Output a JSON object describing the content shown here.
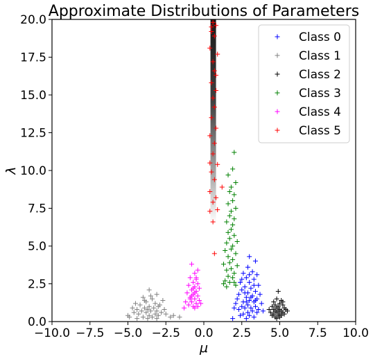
{
  "chart_data": {
    "type": "scatter",
    "title": "Approximate Distributions of Parameters",
    "xlabel": "μ",
    "ylabel": "λ",
    "xlim": [
      -10.0,
      10.0
    ],
    "ylim": [
      0.0,
      20.0
    ],
    "xticks": [
      "−10.0",
      "−7.5",
      "−5.0",
      "−2.5",
      "0.0",
      "2.5",
      "5.0",
      "7.5",
      "10.0"
    ],
    "yticks": [
      "0.0",
      "2.5",
      "5.0",
      "7.5",
      "10.0",
      "12.5",
      "15.0",
      "17.5",
      "20.0"
    ],
    "xtick_values": [
      -10,
      -7.5,
      -5,
      -2.5,
      0,
      2.5,
      5,
      7.5,
      10
    ],
    "ytick_values": [
      0,
      2.5,
      5,
      7.5,
      10,
      12.5,
      15,
      17.5,
      20
    ],
    "grid": false,
    "legend_position": "top-right",
    "marker": "+",
    "density_band": {
      "x": 0.62,
      "y_from": 6.5,
      "y_to": 20.0,
      "color": "#000000"
    },
    "series": [
      {
        "name": "Class 0",
        "color": "#0000ff",
        "points": [
          [
            3.0,
            4.3
          ],
          [
            3.4,
            4.0
          ],
          [
            2.9,
            3.6
          ],
          [
            3.2,
            3.3
          ],
          [
            2.6,
            3.2
          ],
          [
            3.5,
            3.1
          ],
          [
            2.8,
            2.9
          ],
          [
            3.3,
            2.8
          ],
          [
            2.4,
            2.6
          ],
          [
            3.0,
            2.6
          ],
          [
            3.6,
            2.4
          ],
          [
            2.7,
            2.3
          ],
          [
            3.1,
            2.2
          ],
          [
            2.5,
            2.1
          ],
          [
            3.4,
            2.0
          ],
          [
            2.9,
            1.9
          ],
          [
            3.7,
            1.8
          ],
          [
            2.3,
            1.8
          ],
          [
            3.2,
            1.7
          ],
          [
            2.8,
            1.6
          ],
          [
            3.5,
            1.5
          ],
          [
            2.2,
            1.5
          ],
          [
            3.0,
            1.4
          ],
          [
            2.6,
            1.3
          ],
          [
            3.3,
            1.3
          ],
          [
            3.8,
            1.2
          ],
          [
            2.1,
            1.2
          ],
          [
            2.9,
            1.1
          ],
          [
            3.4,
            1.0
          ],
          [
            2.5,
            1.0
          ],
          [
            3.1,
            0.9
          ],
          [
            2.7,
            0.9
          ],
          [
            3.6,
            0.8
          ],
          [
            2.3,
            0.8
          ],
          [
            3.2,
            0.7
          ],
          [
            2.9,
            0.6
          ],
          [
            3.5,
            0.6
          ],
          [
            2.6,
            0.5
          ],
          [
            3.0,
            0.4
          ],
          [
            2.4,
            0.4
          ],
          [
            3.3,
            0.3
          ],
          [
            2.8,
            0.2
          ],
          [
            1.9,
            0.2
          ],
          [
            3.9,
            0.7
          ],
          [
            2.0,
            0.9
          ],
          [
            3.1,
            1.6
          ],
          [
            2.7,
            1.9
          ],
          [
            3.3,
            2.4
          ],
          [
            2.5,
            2.8
          ],
          [
            3.0,
            3.1
          ],
          [
            3.4,
            1.4
          ],
          [
            2.8,
            1.3
          ]
        ]
      },
      {
        "name": "Class 1",
        "color": "#808080",
        "points": [
          [
            -3.6,
            2.1
          ],
          [
            -3.1,
            1.8
          ],
          [
            -4.0,
            1.6
          ],
          [
            -3.4,
            1.5
          ],
          [
            -2.7,
            1.4
          ],
          [
            -3.8,
            1.3
          ],
          [
            -4.5,
            1.2
          ],
          [
            -3.2,
            1.2
          ],
          [
            -2.9,
            1.1
          ],
          [
            -4.2,
            1.1
          ],
          [
            -3.6,
            1.0
          ],
          [
            -3.0,
            1.0
          ],
          [
            -4.7,
            0.9
          ],
          [
            -3.9,
            0.9
          ],
          [
            -3.3,
            0.9
          ],
          [
            -2.6,
            0.8
          ],
          [
            -4.4,
            0.8
          ],
          [
            -3.7,
            0.8
          ],
          [
            -3.1,
            0.7
          ],
          [
            -4.1,
            0.7
          ],
          [
            -3.5,
            0.7
          ],
          [
            -2.8,
            0.6
          ],
          [
            -4.6,
            0.6
          ],
          [
            -3.8,
            0.6
          ],
          [
            -3.2,
            0.5
          ],
          [
            -2.5,
            0.5
          ],
          [
            -4.3,
            0.5
          ],
          [
            -3.6,
            0.4
          ],
          [
            -3.0,
            0.4
          ],
          [
            -4.9,
            0.3
          ],
          [
            -4.0,
            0.3
          ],
          [
            -3.4,
            0.3
          ],
          [
            -2.2,
            0.3
          ],
          [
            -3.7,
            0.2
          ],
          [
            -4.4,
            0.2
          ],
          [
            -3.1,
            0.2
          ],
          [
            -2.0,
            0.4
          ],
          [
            -1.6,
            0.3
          ],
          [
            -5.0,
            0.4
          ],
          [
            -3.9,
            1.4
          ],
          [
            -3.5,
            1.7
          ]
        ]
      },
      {
        "name": "Class 2",
        "color": "#000000",
        "points": [
          [
            4.9,
            2.0
          ],
          [
            4.8,
            1.5
          ],
          [
            5.1,
            1.4
          ],
          [
            4.6,
            1.3
          ],
          [
            5.0,
            1.2
          ],
          [
            4.7,
            1.1
          ],
          [
            5.2,
            1.1
          ],
          [
            4.9,
            1.0
          ],
          [
            4.5,
            1.0
          ],
          [
            5.3,
            0.9
          ],
          [
            4.8,
            0.9
          ],
          [
            5.0,
            0.8
          ],
          [
            4.6,
            0.8
          ],
          [
            5.4,
            0.8
          ],
          [
            4.9,
            0.7
          ],
          [
            4.7,
            0.7
          ],
          [
            5.1,
            0.7
          ],
          [
            4.4,
            0.6
          ],
          [
            5.2,
            0.6
          ],
          [
            4.8,
            0.6
          ],
          [
            5.0,
            0.5
          ],
          [
            4.6,
            0.5
          ],
          [
            5.3,
            0.5
          ],
          [
            4.9,
            0.4
          ],
          [
            4.5,
            0.4
          ],
          [
            5.1,
            0.4
          ],
          [
            4.7,
            0.3
          ],
          [
            5.0,
            0.3
          ],
          [
            4.8,
            0.2
          ],
          [
            5.5,
            0.7
          ],
          [
            4.3,
            0.8
          ],
          [
            5.2,
            1.3
          ]
        ]
      },
      {
        "name": "Class 3",
        "color": "#008000",
        "points": [
          [
            2.0,
            11.2
          ],
          [
            1.9,
            10.1
          ],
          [
            1.6,
            9.7
          ],
          [
            2.1,
            9.2
          ],
          [
            1.8,
            8.9
          ],
          [
            1.7,
            8.6
          ],
          [
            2.0,
            8.4
          ],
          [
            1.9,
            8.0
          ],
          [
            1.6,
            7.8
          ],
          [
            2.1,
            7.5
          ],
          [
            1.8,
            7.3
          ],
          [
            1.7,
            7.0
          ],
          [
            2.0,
            6.8
          ],
          [
            1.5,
            6.6
          ],
          [
            1.9,
            6.4
          ],
          [
            1.8,
            6.1
          ],
          [
            1.6,
            5.9
          ],
          [
            2.0,
            5.7
          ],
          [
            1.7,
            5.5
          ],
          [
            2.2,
            5.3
          ],
          [
            1.5,
            5.2
          ],
          [
            1.9,
            5.0
          ],
          [
            1.8,
            4.8
          ],
          [
            1.4,
            4.7
          ],
          [
            2.1,
            4.5
          ],
          [
            1.6,
            4.3
          ],
          [
            1.9,
            4.1
          ],
          [
            1.7,
            3.9
          ],
          [
            1.3,
            3.8
          ],
          [
            2.2,
            3.7
          ],
          [
            1.8,
            3.5
          ],
          [
            1.5,
            3.4
          ],
          [
            2.0,
            3.2
          ],
          [
            1.6,
            3.0
          ],
          [
            1.9,
            2.9
          ],
          [
            1.4,
            2.7
          ],
          [
            1.7,
            2.6
          ],
          [
            2.1,
            2.4
          ],
          [
            1.5,
            2.3
          ],
          [
            2.0,
            2.6
          ],
          [
            1.3,
            2.5
          ]
        ]
      },
      {
        "name": "Class 4",
        "color": "#ff00ff",
        "points": [
          [
            -0.8,
            3.8
          ],
          [
            -0.4,
            3.4
          ],
          [
            -0.6,
            3.2
          ],
          [
            -0.9,
            2.9
          ],
          [
            -0.5,
            2.8
          ],
          [
            -0.7,
            2.6
          ],
          [
            -0.4,
            2.5
          ],
          [
            -1.0,
            2.4
          ],
          [
            -0.6,
            2.3
          ],
          [
            -0.3,
            2.2
          ],
          [
            -0.8,
            2.1
          ],
          [
            -0.5,
            2.0
          ],
          [
            -1.1,
            1.9
          ],
          [
            -0.7,
            1.8
          ],
          [
            -0.4,
            1.7
          ],
          [
            -0.9,
            1.6
          ],
          [
            -0.6,
            1.5
          ],
          [
            -0.3,
            1.4
          ],
          [
            -1.2,
            1.3
          ],
          [
            -0.8,
            1.3
          ],
          [
            -0.5,
            1.2
          ],
          [
            -1.0,
            1.1
          ],
          [
            -0.7,
            1.0
          ],
          [
            -0.4,
            1.0
          ],
          [
            -1.3,
            0.9
          ],
          [
            -0.6,
            0.9
          ],
          [
            -0.9,
            1.5
          ],
          [
            -0.5,
            2.9
          ],
          [
            -0.7,
            2.2
          ],
          [
            -0.6,
            1.9
          ],
          [
            -0.2,
            1.2
          ],
          [
            -0.8,
            1.7
          ]
        ]
      },
      {
        "name": "Class 5",
        "color": "#ff0000",
        "points": [
          [
            0.6,
            19.8
          ],
          [
            0.8,
            19.6
          ],
          [
            0.5,
            19.2
          ],
          [
            0.7,
            18.9
          ],
          [
            0.4,
            18.1
          ],
          [
            0.9,
            17.7
          ],
          [
            0.6,
            17.2
          ],
          [
            0.7,
            16.6
          ],
          [
            0.5,
            15.8
          ],
          [
            0.8,
            15.3
          ],
          [
            0.6,
            14.8
          ],
          [
            0.7,
            14.2
          ],
          [
            0.5,
            13.5
          ],
          [
            0.8,
            12.8
          ],
          [
            0.4,
            12.3
          ],
          [
            0.7,
            11.8
          ],
          [
            0.6,
            11.1
          ],
          [
            0.4,
            10.5
          ],
          [
            0.9,
            10.4
          ],
          [
            1.2,
            8.9
          ],
          [
            0.5,
            9.9
          ],
          [
            0.7,
            9.4
          ],
          [
            0.4,
            8.6
          ],
          [
            0.8,
            8.2
          ],
          [
            0.6,
            7.9
          ],
          [
            0.4,
            7.3
          ],
          [
            0.9,
            7.4
          ],
          [
            0.6,
            6.6
          ],
          [
            0.7,
            4.5
          ],
          [
            0.5,
            19.5
          ],
          [
            0.8,
            16.3
          ]
        ]
      }
    ]
  }
}
